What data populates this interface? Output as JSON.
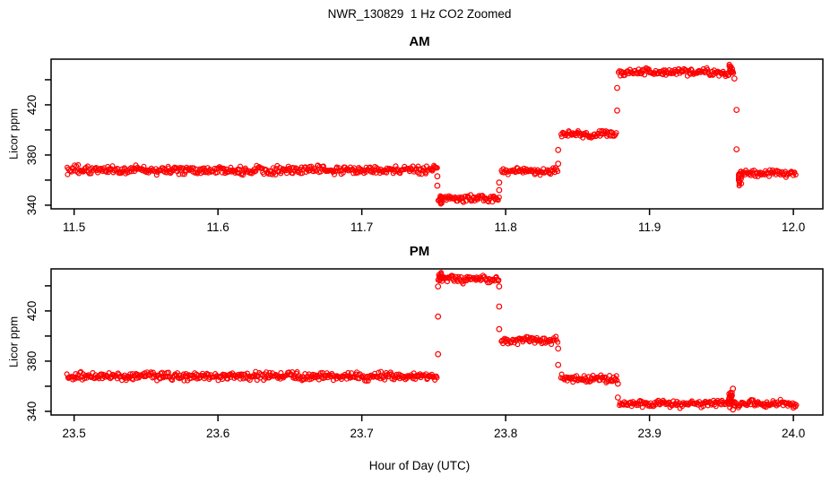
{
  "figure": {
    "title": "NWR_130829  1 Hz CO2 Zoomed",
    "xlabel": "Hour of Day (UTC)",
    "background_color": "#FFFFFF",
    "axis_color": "#000000"
  },
  "chart_data": [
    {
      "type": "scatter",
      "panel": "AM",
      "title": "AM",
      "ylabel": "Licor ppm",
      "marker": "open-circle",
      "point_color": "#FF0000",
      "grid": false,
      "legend": "none",
      "xlim": [
        11.484,
        12.0205
      ],
      "ylim": [
        337.1,
        456.4
      ],
      "x_ticks": [
        {
          "v": 11.5,
          "label": "11.5"
        },
        {
          "v": 11.6,
          "label": "11.6"
        },
        {
          "v": 11.7,
          "label": "11.7"
        },
        {
          "v": 11.8,
          "label": "11.8"
        },
        {
          "v": 11.9,
          "label": "11.9"
        },
        {
          "v": 12.0,
          "label": "12.0"
        }
      ],
      "y_ticks": [
        {
          "v": 340,
          "label": "340"
        },
        {
          "v": 360,
          "label": ""
        },
        {
          "v": 380,
          "label": "380"
        },
        {
          "v": 400,
          "label": ""
        },
        {
          "v": 420,
          "label": "420"
        },
        {
          "v": 440,
          "label": ""
        }
      ],
      "segments": [
        {
          "x0": 11.495,
          "x1": 11.7525,
          "y": 368.0,
          "noise": 2.2
        },
        {
          "x0": 11.754,
          "x1": 11.7955,
          "y": 345.5,
          "noise": 1.8
        },
        {
          "x0": 11.797,
          "x1": 11.8365,
          "y": 367.0,
          "noise": 1.8
        },
        {
          "x0": 11.8385,
          "x1": 11.877,
          "y": 396.5,
          "noise": 1.8
        },
        {
          "x0": 11.8785,
          "x1": 11.9585,
          "y": 446.0,
          "noise": 2.0
        },
        {
          "x0": 11.962,
          "x1": 12.002,
          "y": 365.5,
          "noise": 1.8
        }
      ],
      "spike_clusters": [
        {
          "x": 11.7545,
          "y0": 341.0,
          "y1": 346.0,
          "n": 10
        },
        {
          "x": 11.963,
          "y0": 356.0,
          "y1": 365.0,
          "n": 14
        },
        {
          "x": 11.9565,
          "y0": 446.0,
          "y1": 452.0,
          "n": 10
        }
      ],
      "outliers": [
        [
          11.7525,
          363.0
        ],
        [
          11.7525,
          355.5
        ],
        [
          11.7955,
          358.0
        ],
        [
          11.7955,
          352.0
        ],
        [
          11.8365,
          384.0
        ],
        [
          11.8365,
          373.0
        ],
        [
          11.8775,
          433.5
        ],
        [
          11.8775,
          415.5
        ],
        [
          11.959,
          441.0
        ],
        [
          11.9605,
          416.0
        ],
        [
          11.9605,
          384.5
        ]
      ]
    },
    {
      "type": "scatter",
      "panel": "PM",
      "title": "PM",
      "ylabel": "Licor ppm",
      "marker": "open-circle",
      "point_color": "#FF0000",
      "grid": false,
      "legend": "none",
      "xlim": [
        23.484,
        24.0205
      ],
      "ylim": [
        337.1,
        453.5
      ],
      "x_ticks": [
        {
          "v": 23.5,
          "label": "23.5"
        },
        {
          "v": 23.6,
          "label": "23.6"
        },
        {
          "v": 23.7,
          "label": "23.7"
        },
        {
          "v": 23.8,
          "label": "23.8"
        },
        {
          "v": 23.9,
          "label": "23.9"
        },
        {
          "v": 24.0,
          "label": "24.0"
        }
      ],
      "y_ticks": [
        {
          "v": 340,
          "label": "340"
        },
        {
          "v": 360,
          "label": ""
        },
        {
          "v": 380,
          "label": "380"
        },
        {
          "v": 400,
          "label": ""
        },
        {
          "v": 420,
          "label": "420"
        },
        {
          "v": 440,
          "label": ""
        }
      ],
      "segments": [
        {
          "x0": 23.495,
          "x1": 23.7525,
          "y": 368.0,
          "noise": 2.2
        },
        {
          "x0": 23.754,
          "x1": 23.7955,
          "y": 445.5,
          "noise": 2.0
        },
        {
          "x0": 23.797,
          "x1": 23.8365,
          "y": 396.5,
          "noise": 1.8
        },
        {
          "x0": 23.8385,
          "x1": 23.8775,
          "y": 366.0,
          "noise": 1.8
        },
        {
          "x0": 23.879,
          "x1": 24.002,
          "y": 346.0,
          "noise": 1.8
        }
      ],
      "spike_clusters": [
        {
          "x": 23.7545,
          "y0": 445.0,
          "y1": 450.0,
          "n": 10
        },
        {
          "x": 23.956,
          "y0": 347.0,
          "y1": 355.5,
          "n": 16
        }
      ],
      "outliers": [
        [
          23.753,
          385.5
        ],
        [
          23.753,
          415.5
        ],
        [
          23.753,
          439.5
        ],
        [
          23.7955,
          439.5
        ],
        [
          23.7955,
          423.5
        ],
        [
          23.7955,
          405.5
        ],
        [
          23.8365,
          390.0
        ],
        [
          23.8365,
          377.0
        ],
        [
          23.878,
          362.0
        ],
        [
          23.878,
          351.0
        ],
        [
          23.958,
          358.0
        ],
        [
          23.958,
          341.5
        ],
        [
          24.0,
          343.0
        ]
      ]
    }
  ]
}
